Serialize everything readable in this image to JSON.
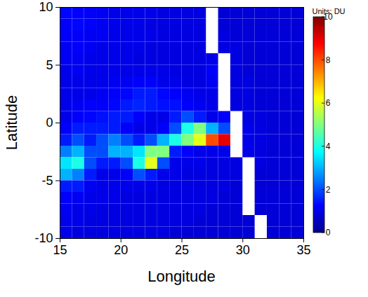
{
  "chart_data": {
    "type": "heatmap",
    "xlabel": "Longitude",
    "ylabel": "Latitude",
    "xlim": [
      15,
      35
    ],
    "ylim": [
      -10,
      10
    ],
    "xticks": [
      15,
      20,
      25,
      30,
      35
    ],
    "yticks": [
      -10,
      -5,
      0,
      5,
      10
    ],
    "x": [
      15.5,
      16.5,
      17.5,
      18.5,
      19.5,
      20.5,
      21.5,
      22.5,
      23.5,
      24.5,
      25.5,
      26.5,
      27.5,
      28.5,
      29.5,
      30.5,
      31.5,
      32.5,
      33.5,
      34.5
    ],
    "y": [
      9.5,
      8.5,
      7.5,
      6.5,
      5.5,
      4.5,
      3.5,
      2.5,
      1.5,
      0.5,
      -0.5,
      -1.5,
      -2.5,
      -3.5,
      -4.5,
      -5.5,
      -6.5,
      -7.5,
      -8.5,
      -9.5
    ],
    "cells": [
      [
        1.3,
        1.2,
        1.2,
        1.1,
        1,
        1,
        1,
        1,
        0.9,
        0.9,
        0.9,
        0.9,
        null,
        0.8,
        0.8,
        0.8,
        0.8,
        0.8,
        0.8,
        0.8
      ],
      [
        1.2,
        1.3,
        1.2,
        1.1,
        1,
        1,
        1,
        0.9,
        0.9,
        0.9,
        0.9,
        0.9,
        null,
        0.8,
        0.8,
        0.8,
        0.8,
        0.8,
        0.8,
        0.8
      ],
      [
        1.2,
        1.2,
        1.1,
        1.1,
        1,
        1,
        1,
        1,
        0.9,
        0.9,
        0.9,
        0.9,
        null,
        0.9,
        0.8,
        0.8,
        0.8,
        0.8,
        0.8,
        0.8
      ],
      [
        1.1,
        1.2,
        1.1,
        1,
        1,
        1,
        1,
        0.9,
        0.9,
        0.9,
        0.9,
        0.9,
        null,
        0.9,
        0.9,
        0.8,
        0.8,
        0.8,
        0.8,
        0.8
      ],
      [
        1.1,
        1.1,
        1,
        1,
        1,
        1,
        0.9,
        0.9,
        0.9,
        0.9,
        0.9,
        0.9,
        1,
        null,
        0.9,
        0.8,
        0.8,
        0.8,
        0.8,
        0.8
      ],
      [
        1,
        1.1,
        1,
        1,
        1,
        1,
        1,
        1,
        1,
        0.9,
        0.9,
        0.9,
        1.2,
        null,
        0.9,
        0.8,
        0.8,
        0.8,
        0.8,
        0.8
      ],
      [
        1,
        1,
        1,
        1,
        1.1,
        1.1,
        1.2,
        1.2,
        1,
        1,
        0.9,
        0.9,
        1.1,
        null,
        0.9,
        0.9,
        0.8,
        0.8,
        0.8,
        0.8
      ],
      [
        1,
        1,
        1,
        1.1,
        1.2,
        1.3,
        1.5,
        1.5,
        1.3,
        1.2,
        1.1,
        1,
        1,
        null,
        0.9,
        0.9,
        0.8,
        0.8,
        0.8,
        0.8
      ],
      [
        1,
        1.1,
        1.2,
        1.2,
        1.3,
        1.5,
        1.6,
        1.5,
        1.4,
        1.4,
        1.2,
        1.1,
        1,
        null,
        0.9,
        0.9,
        0.8,
        0.8,
        0.8,
        0.8
      ],
      [
        1,
        1.2,
        1.3,
        1.4,
        1.5,
        1.5,
        1.2,
        1,
        1,
        1.5,
        2,
        1.5,
        1,
        1.2,
        null,
        0.9,
        0.9,
        0.8,
        0.8,
        0.8
      ],
      [
        1.2,
        1.5,
        1.5,
        1.5,
        1.5,
        1.2,
        1,
        1,
        1.2,
        2,
        4,
        5,
        3,
        2,
        null,
        1,
        0.9,
        0.8,
        0.8,
        0.8
      ],
      [
        1.5,
        2,
        1.5,
        2,
        2.5,
        2,
        1.5,
        2,
        3,
        4,
        5,
        6,
        8,
        9,
        null,
        1,
        0.9,
        0.8,
        0.8,
        0.8
      ],
      [
        2.5,
        3,
        2,
        2,
        3,
        3,
        3.5,
        5,
        5,
        1.5,
        1.2,
        1,
        1,
        1,
        null,
        1,
        0.9,
        0.8,
        0.8,
        0.8
      ],
      [
        3.5,
        4,
        2,
        1.5,
        1.5,
        2,
        4,
        6,
        2,
        1,
        1,
        1,
        0.9,
        0.9,
        0.9,
        null,
        0.9,
        0.8,
        0.8,
        0.8
      ],
      [
        3,
        2.5,
        1.5,
        1,
        1,
        1.2,
        2,
        1.5,
        1,
        1,
        0.9,
        0.9,
        0.9,
        0.9,
        0.9,
        null,
        0.8,
        0.8,
        0.8,
        0.8
      ],
      [
        1.5,
        1.5,
        1.1,
        1,
        1,
        1,
        1,
        1,
        0.9,
        0.9,
        0.9,
        0.9,
        0.9,
        0.9,
        0.8,
        null,
        0.8,
        0.8,
        0.8,
        0.8
      ],
      [
        1.2,
        1.1,
        1,
        1,
        1,
        0.9,
        0.9,
        0.9,
        0.9,
        0.9,
        0.9,
        0.9,
        0.9,
        0.8,
        0.8,
        null,
        0.8,
        0.8,
        0.8,
        0.8
      ],
      [
        1.1,
        1,
        1,
        0.9,
        0.9,
        0.9,
        0.9,
        0.9,
        0.9,
        0.9,
        0.9,
        0.9,
        0.8,
        0.8,
        0.8,
        null,
        0.8,
        0.8,
        0.8,
        0.8
      ],
      [
        1,
        1,
        0.9,
        0.9,
        0.9,
        0.9,
        0.9,
        0.9,
        0.9,
        0.9,
        0.9,
        0.8,
        0.8,
        0.8,
        0.8,
        0.8,
        null,
        0.8,
        0.8,
        0.8
      ],
      [
        1,
        0.9,
        0.9,
        0.9,
        0.9,
        0.9,
        0.9,
        0.9,
        0.9,
        0.8,
        0.8,
        0.8,
        0.8,
        0.8,
        0.8,
        0.8,
        null,
        0.8,
        0.8,
        0.8
      ]
    ],
    "colorbar": {
      "title": "Units: DU",
      "range": [
        0,
        10
      ],
      "ticks": [
        0,
        2,
        4,
        6,
        8,
        10
      ]
    }
  }
}
